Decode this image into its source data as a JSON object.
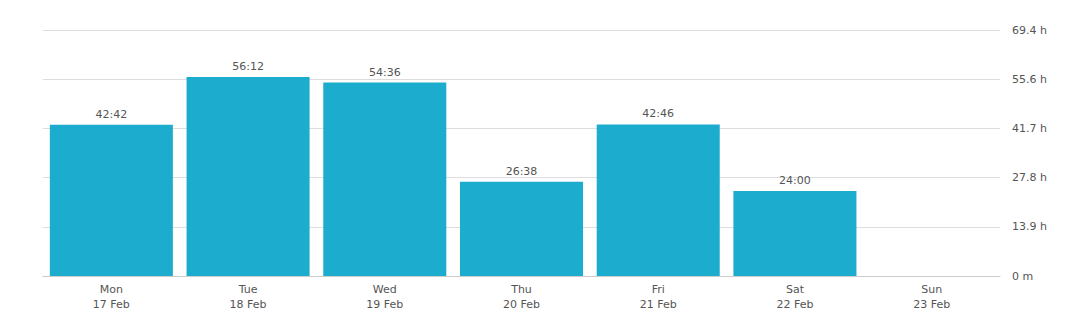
{
  "chart_data": {
    "type": "bar",
    "categories": [
      "Mon\n17 Feb",
      "Tue\n18 Feb",
      "Wed\n19 Feb",
      "Thu\n20 Feb",
      "Fri\n21 Feb",
      "Sat\n22 Feb",
      "Sun\n23 Feb"
    ],
    "values": [
      42.7,
      56.2,
      54.6,
      26.633,
      42.767,
      24,
      null
    ],
    "value_labels": [
      "42:42",
      "56:12",
      "54:36",
      "26:38",
      "42:46",
      "24:00",
      null
    ],
    "color": "#1cadce",
    "ylim": [
      0,
      69.44
    ],
    "yticks": [
      {
        "value": 0,
        "label": "0 m"
      },
      {
        "value": 13.888,
        "label": "13.9 h"
      },
      {
        "value": 27.776,
        "label": "27.8 h"
      },
      {
        "value": 41.664,
        "label": "41.7 h"
      },
      {
        "value": 55.552,
        "label": "55.6 h"
      },
      {
        "value": 69.44,
        "label": "69.4 h"
      }
    ],
    "grid": true,
    "data_labels": true
  }
}
